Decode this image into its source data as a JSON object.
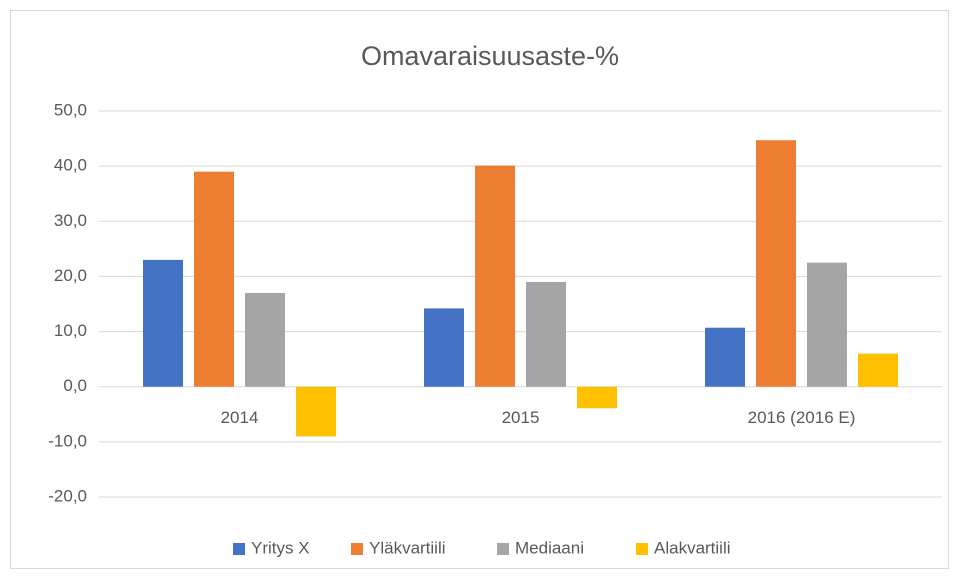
{
  "chart_data": {
    "type": "bar",
    "title": "Omavaraisuusaste-%",
    "categories": [
      "2014",
      "2015",
      "2016 (2016 E)"
    ],
    "series": [
      {
        "name": "Yritys X",
        "color": "#4472c4",
        "values": [
          23.0,
          14.2,
          10.7
        ]
      },
      {
        "name": "Yläkvartiili",
        "color": "#ed7d31",
        "values": [
          39.0,
          40.1,
          44.7
        ]
      },
      {
        "name": "Mediaani",
        "color": "#a5a5a5",
        "values": [
          17.0,
          19.0,
          22.5
        ]
      },
      {
        "name": "Alakvartiili",
        "color": "#ffc000",
        "values": [
          -9.0,
          -3.9,
          6.0
        ]
      }
    ],
    "ylim": [
      -20,
      50
    ],
    "yticks": [
      {
        "value": -20,
        "label": "-20,0"
      },
      {
        "value": -10,
        "label": "-10,0"
      },
      {
        "value": 0,
        "label": "0,0"
      },
      {
        "value": 10,
        "label": "10,0"
      },
      {
        "value": 20,
        "label": "20,0"
      },
      {
        "value": 30,
        "label": "30,0"
      },
      {
        "value": 40,
        "label": "40,0"
      },
      {
        "value": 50,
        "label": "50,0"
      }
    ],
    "grid": true,
    "legend": "bottom"
  }
}
